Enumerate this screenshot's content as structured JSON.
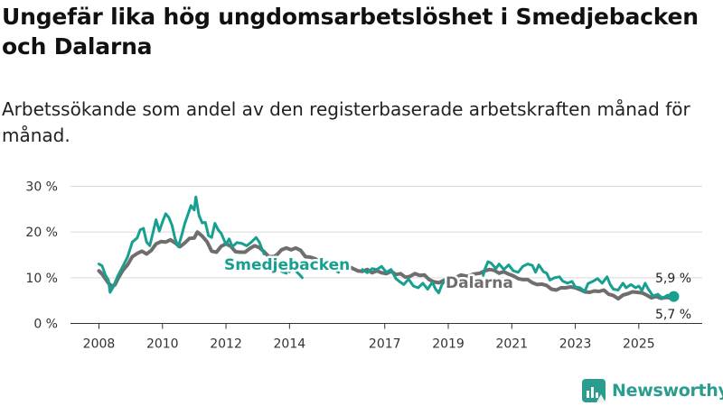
{
  "header": {
    "title": "Ungefär lika hög ungdomsarbetslöshet i Smedjebacken och Dalarna",
    "subtitle": "Arbetssökande som andel av den registerbaserade arbetskraften månad för månad."
  },
  "brand": {
    "name": "Newsworthy",
    "icon": "bar-chart-icon",
    "color": "#2a9d8f"
  },
  "chart_data": {
    "type": "line",
    "title": "Ungefär lika hög ungdomsarbetslöshet i Smedjebacken och Dalarna",
    "xlabel": "",
    "ylabel": "",
    "x_range": [
      2008,
      2026.2
    ],
    "ylim": [
      0,
      30
    ],
    "y_ticks": [
      0,
      10,
      20,
      30
    ],
    "y_tick_labels": [
      "0 %",
      "10 %",
      "20 %",
      "30 %"
    ],
    "x_ticks": [
      2008,
      2010,
      2012,
      2014,
      2017,
      2019,
      2021,
      2023,
      2025
    ],
    "x_tick_labels": [
      "2008",
      "2010",
      "2012",
      "2014",
      "2017",
      "2019",
      "2021",
      "2023",
      "2025"
    ],
    "grid": true,
    "series": [
      {
        "name": "Smedjebacken",
        "color": "#17a090",
        "points": [
          [
            2008.0,
            13
          ],
          [
            2008.1,
            12.6
          ],
          [
            2008.2,
            10.6
          ],
          [
            2008.3,
            9.5
          ],
          [
            2008.35,
            6.8
          ],
          [
            2008.45,
            8
          ],
          [
            2008.6,
            10.5
          ],
          [
            2008.75,
            12.5
          ],
          [
            2008.9,
            14.5
          ],
          [
            2009.05,
            17.8
          ],
          [
            2009.2,
            18.7
          ],
          [
            2009.3,
            20.5
          ],
          [
            2009.4,
            20.8
          ],
          [
            2009.5,
            17.8
          ],
          [
            2009.6,
            17
          ],
          [
            2009.7,
            19.8
          ],
          [
            2009.8,
            22.7
          ],
          [
            2009.9,
            20.2
          ],
          [
            2010.0,
            22.2
          ],
          [
            2010.1,
            24
          ],
          [
            2010.2,
            23.2
          ],
          [
            2010.3,
            21.5
          ],
          [
            2010.4,
            18.5
          ],
          [
            2010.5,
            16.8
          ],
          [
            2010.6,
            19.2
          ],
          [
            2010.7,
            21.8
          ],
          [
            2010.8,
            23.8
          ],
          [
            2010.9,
            25.8
          ],
          [
            2011.0,
            24.8
          ],
          [
            2011.05,
            27.7
          ],
          [
            2011.15,
            23.6
          ],
          [
            2011.25,
            22
          ],
          [
            2011.35,
            22.1
          ],
          [
            2011.45,
            19.2
          ],
          [
            2011.55,
            18.8
          ],
          [
            2011.65,
            21.9
          ],
          [
            2011.75,
            20.5
          ],
          [
            2011.85,
            19.7
          ],
          [
            2012.0,
            17.3
          ],
          [
            2012.1,
            18.5
          ],
          [
            2012.2,
            16.8
          ],
          [
            2012.35,
            17.7
          ],
          [
            2012.5,
            17.5
          ],
          [
            2012.65,
            17
          ],
          [
            2012.8,
            17.8
          ],
          [
            2012.95,
            18.8
          ],
          [
            2013.05,
            17.8
          ],
          [
            2013.15,
            16
          ],
          [
            2013.2,
            15.2
          ]
        ],
        "extra_segments": [
          [
            [
              2013.6,
              13.8
            ],
            [
              2013.75,
              11.4
            ],
            [
              2013.9,
              11
            ]
          ],
          [
            [
              2014.0,
              11.3
            ],
            [
              2014.1,
              12.1
            ],
            [
              2014.3,
              10.8
            ],
            [
              2014.4,
              10
            ]
          ],
          [
            [
              2015.4,
              11.8
            ],
            [
              2015.55,
              11.2
            ]
          ],
          [
            [
              2016.3,
              11.8
            ],
            [
              2016.45,
              11.1
            ],
            [
              2016.6,
              12
            ],
            [
              2016.75,
              11.8
            ],
            [
              2016.9,
              12.5
            ],
            [
              2017.05,
              11.2
            ],
            [
              2017.2,
              11.8
            ],
            [
              2017.35,
              9.8
            ],
            [
              2017.5,
              9
            ],
            [
              2017.6,
              8.5
            ],
            [
              2017.75,
              9.7
            ],
            [
              2017.9,
              8.2
            ],
            [
              2018.05,
              7.8
            ],
            [
              2018.2,
              8.8
            ],
            [
              2018.35,
              7.5
            ],
            [
              2018.5,
              9
            ],
            [
              2018.6,
              7.5
            ],
            [
              2018.7,
              6.7
            ],
            [
              2018.8,
              8.5
            ],
            [
              2018.95,
              9.8
            ],
            [
              2019.0,
              10.3
            ]
          ],
          [
            [
              2020.1,
              10.5
            ],
            [
              2020.15,
              11.8
            ],
            [
              2020.25,
              13.5
            ],
            [
              2020.35,
              13.2
            ],
            [
              2020.5,
              12
            ],
            [
              2020.6,
              13
            ],
            [
              2020.75,
              11.8
            ],
            [
              2020.9,
              12.8
            ],
            [
              2021.05,
              11.5
            ],
            [
              2021.2,
              11.2
            ],
            [
              2021.35,
              12.5
            ],
            [
              2021.5,
              13
            ],
            [
              2021.65,
              12.7
            ],
            [
              2021.75,
              11.2
            ],
            [
              2021.85,
              12.8
            ],
            [
              2022.0,
              11.3
            ],
            [
              2022.1,
              11
            ],
            [
              2022.2,
              9.5
            ],
            [
              2022.35,
              10
            ],
            [
              2022.5,
              10.2
            ],
            [
              2022.6,
              9.3
            ],
            [
              2022.75,
              8.8
            ],
            [
              2022.9,
              9.2
            ],
            [
              2023.0,
              8
            ],
            [
              2023.15,
              7.8
            ],
            [
              2023.3,
              7
            ],
            [
              2023.4,
              8.7
            ],
            [
              2023.55,
              9.2
            ],
            [
              2023.7,
              9.8
            ],
            [
              2023.85,
              8.8
            ],
            [
              2024.0,
              10.2
            ],
            [
              2024.1,
              8.5
            ],
            [
              2024.2,
              7.5
            ],
            [
              2024.35,
              7.3
            ],
            [
              2024.5,
              8.8
            ],
            [
              2024.6,
              7.8
            ],
            [
              2024.75,
              8.5
            ],
            [
              2024.9,
              7.8
            ],
            [
              2025.0,
              8.2
            ],
            [
              2025.1,
              7.2
            ],
            [
              2025.2,
              8.8
            ],
            [
              2025.3,
              7.5
            ],
            [
              2025.45,
              6
            ],
            [
              2025.6,
              6.4
            ],
            [
              2025.75,
              5.5
            ],
            [
              2025.9,
              6.2
            ],
            [
              2026.0,
              5.8
            ],
            [
              2026.1,
              5.9
            ]
          ]
        ],
        "end_value": 5.9,
        "end_label": "5,9 %"
      },
      {
        "name": "Dalarna",
        "color": "#6e6e6e",
        "points": [
          [
            2008.0,
            11.5
          ],
          [
            2008.1,
            10.8
          ],
          [
            2008.2,
            9.8
          ],
          [
            2008.3,
            8.8
          ],
          [
            2008.4,
            8.2
          ],
          [
            2008.5,
            8.4
          ],
          [
            2008.6,
            9.8
          ],
          [
            2008.75,
            11.6
          ],
          [
            2008.9,
            12.8
          ],
          [
            2009.05,
            14.6
          ],
          [
            2009.2,
            15.3
          ],
          [
            2009.35,
            15.8
          ],
          [
            2009.5,
            15.2
          ],
          [
            2009.65,
            16
          ],
          [
            2009.8,
            17.4
          ],
          [
            2009.95,
            17.9
          ],
          [
            2010.1,
            17.8
          ],
          [
            2010.25,
            18.3
          ],
          [
            2010.4,
            17.6
          ],
          [
            2010.55,
            16.8
          ],
          [
            2010.7,
            17.6
          ],
          [
            2010.85,
            18.6
          ],
          [
            2011.0,
            18.7
          ],
          [
            2011.1,
            20
          ],
          [
            2011.25,
            19.1
          ],
          [
            2011.4,
            17.9
          ],
          [
            2011.55,
            15.8
          ],
          [
            2011.7,
            15.6
          ],
          [
            2011.85,
            16.9
          ],
          [
            2012.0,
            17.4
          ],
          [
            2012.15,
            16.9
          ],
          [
            2012.3,
            15.7
          ],
          [
            2012.45,
            15.6
          ],
          [
            2012.6,
            15.6
          ],
          [
            2012.75,
            16.4
          ],
          [
            2012.9,
            17
          ],
          [
            2013.05,
            16.6
          ],
          [
            2013.2,
            15.7
          ],
          [
            2013.35,
            14.6
          ],
          [
            2013.5,
            14.6
          ],
          [
            2013.6,
            15
          ],
          [
            2013.75,
            16.1
          ],
          [
            2013.9,
            16.5
          ],
          [
            2014.05,
            16.1
          ],
          [
            2014.2,
            16.5
          ],
          [
            2014.35,
            16
          ],
          [
            2014.5,
            14.6
          ],
          [
            2014.65,
            14.5
          ],
          [
            2014.8,
            14.2
          ],
          [
            2014.95,
            13.6
          ],
          [
            2015.1,
            13.2
          ],
          [
            2015.25,
            13.2
          ],
          [
            2015.4,
            12.5
          ],
          [
            2015.55,
            12.1
          ],
          [
            2015.7,
            12.6
          ],
          [
            2015.85,
            12.5
          ],
          [
            2016.0,
            12
          ],
          [
            2016.15,
            11.5
          ],
          [
            2016.3,
            11.4
          ],
          [
            2016.45,
            11.8
          ],
          [
            2016.6,
            11.1
          ],
          [
            2016.75,
            11.5
          ],
          [
            2016.9,
            11.1
          ],
          [
            2017.05,
            10.9
          ],
          [
            2017.2,
            11.4
          ],
          [
            2017.35,
            10.7
          ],
          [
            2017.5,
            10.9
          ],
          [
            2017.65,
            10.1
          ],
          [
            2017.8,
            10.3
          ],
          [
            2017.95,
            10.9
          ],
          [
            2018.1,
            10.5
          ],
          [
            2018.25,
            10.6
          ],
          [
            2018.4,
            9.6
          ],
          [
            2018.55,
            9.1
          ],
          [
            2018.7,
            8.9
          ],
          [
            2018.85,
            9.4
          ],
          [
            2019.0,
            9.6
          ],
          [
            2019.2,
            9.9
          ],
          [
            2019.4,
            10.6
          ],
          [
            2019.6,
            10.3
          ],
          [
            2019.8,
            10.8
          ],
          [
            2020.0,
            11
          ],
          [
            2020.15,
            11.5
          ],
          [
            2020.3,
            11.8
          ],
          [
            2020.45,
            11.6
          ],
          [
            2020.6,
            11
          ],
          [
            2020.75,
            11.3
          ],
          [
            2020.9,
            10.8
          ],
          [
            2021.05,
            10.4
          ],
          [
            2021.2,
            9.8
          ],
          [
            2021.35,
            9.6
          ],
          [
            2021.5,
            9.6
          ],
          [
            2021.65,
            8.9
          ],
          [
            2021.8,
            8.5
          ],
          [
            2021.95,
            8.6
          ],
          [
            2022.1,
            8.3
          ],
          [
            2022.25,
            7.5
          ],
          [
            2022.4,
            7.3
          ],
          [
            2022.55,
            7.8
          ],
          [
            2022.7,
            7.8
          ],
          [
            2022.85,
            8
          ],
          [
            2023.0,
            7.8
          ],
          [
            2023.15,
            7.4
          ],
          [
            2023.3,
            6.9
          ],
          [
            2023.45,
            6.8
          ],
          [
            2023.6,
            7.1
          ],
          [
            2023.75,
            7
          ],
          [
            2023.9,
            7.3
          ],
          [
            2024.05,
            6.4
          ],
          [
            2024.2,
            6.1
          ],
          [
            2024.35,
            5.4
          ],
          [
            2024.5,
            6.2
          ],
          [
            2024.65,
            6.5
          ],
          [
            2024.8,
            6.9
          ],
          [
            2024.95,
            6.8
          ],
          [
            2025.1,
            6.7
          ],
          [
            2025.25,
            6.2
          ],
          [
            2025.4,
            5.6
          ],
          [
            2025.55,
            5.9
          ],
          [
            2025.7,
            5.5
          ],
          [
            2025.85,
            5.7
          ],
          [
            2026.0,
            5.6
          ],
          [
            2026.1,
            5.7
          ]
        ],
        "end_value": 5.7,
        "end_label": "5,7 %"
      }
    ],
    "annotations": [
      {
        "text": "Smedjebacken",
        "series": "Smedjebacken"
      },
      {
        "text": "Dalarna",
        "series": "Dalarna"
      }
    ]
  }
}
